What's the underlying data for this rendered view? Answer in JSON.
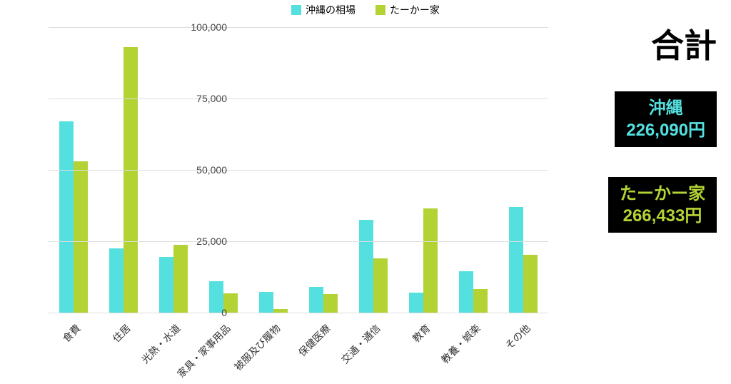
{
  "chart": {
    "type": "bar",
    "background_color": "#ffffff",
    "grid_color": "#dddddd",
    "ylim": [
      0,
      100000
    ],
    "ytick_step": 25000,
    "y_tick_labels": [
      "0",
      "25,000",
      "50,000",
      "75,000",
      "100,000"
    ],
    "categories": [
      "食費",
      "住居",
      "光熱・水道",
      "家具・家事用品",
      "被服及び履物",
      "保健医療",
      "交通・通信",
      "教育",
      "教養・娯楽",
      "その他"
    ],
    "series": [
      {
        "name": "沖縄の相場",
        "color": "#55e0e0",
        "values": [
          67000,
          22500,
          19500,
          11000,
          7300,
          9000,
          32500,
          7000,
          14500,
          37000
        ]
      },
      {
        "name": "たーかー家",
        "color": "#b3d335",
        "values": [
          53000,
          93000,
          23800,
          6800,
          1200,
          6500,
          19000,
          36500,
          8200,
          20200
        ]
      }
    ],
    "group_width_pct": 7.2,
    "bar_width_pct": 2.8,
    "label_fontsize": 14,
    "label_rotation_deg": -45
  },
  "side": {
    "title": "合計",
    "boxes": [
      {
        "label": "沖縄",
        "value": "226,090円",
        "color": "#55e0e0"
      },
      {
        "label": "たーかー家",
        "value": "266,433円",
        "color": "#b3d335"
      }
    ]
  }
}
